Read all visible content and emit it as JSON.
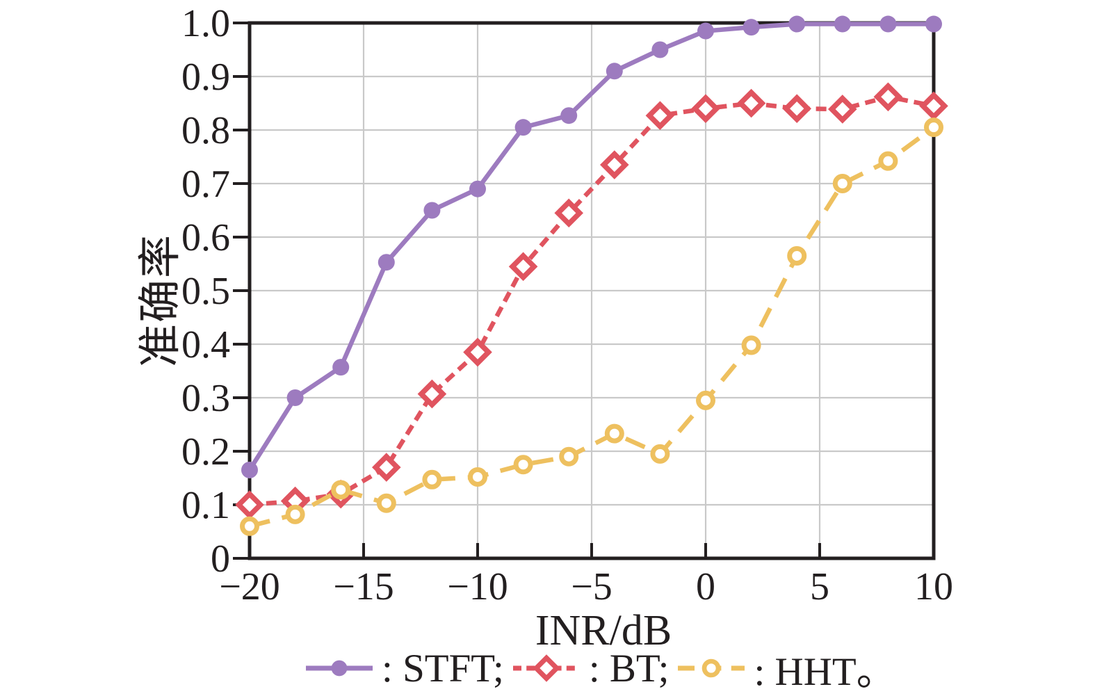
{
  "figure": {
    "background": "#ffffff",
    "axis_color": "#231f20",
    "grid_color": "#c9c9c9",
    "text_color": "#231f20"
  },
  "chart_data": {
    "type": "line",
    "title": "",
    "xlabel": "INR/dB",
    "ylabel": "准确率",
    "xlim": [
      -20,
      10
    ],
    "ylim": [
      0,
      1
    ],
    "grid": true,
    "legend_position": "bottom",
    "x": [
      -20,
      -18,
      -16,
      -14,
      -12,
      -10,
      -8,
      -6,
      -4,
      -2,
      0,
      2,
      4,
      6,
      8,
      10
    ],
    "xticks": [
      -20,
      -15,
      -10,
      -5,
      0,
      5,
      10
    ],
    "xtick_labels": [
      "−20",
      "−15",
      "−10",
      "−5",
      "0",
      "5",
      "10"
    ],
    "yticks": [
      0,
      0.1,
      0.2,
      0.3,
      0.4,
      0.5,
      0.6,
      0.7,
      0.8,
      0.9,
      1.0
    ],
    "ytick_labels": [
      "0",
      "0.1",
      "0.2",
      "0.3",
      "0.4",
      "0.5",
      "0.6",
      "0.7",
      "0.8",
      "0.9",
      "1.0"
    ],
    "series": [
      {
        "name": "STFT",
        "legend_label": ": STFT;",
        "color": "#9d7bbf",
        "marker": "circle-filled",
        "linestyle": "solid",
        "values": [
          0.165,
          0.3,
          0.357,
          0.553,
          0.65,
          0.69,
          0.805,
          0.827,
          0.91,
          0.95,
          0.985,
          0.992,
          0.998,
          0.998,
          0.998,
          0.998
        ]
      },
      {
        "name": "BT",
        "legend_label": ": BT;",
        "color": "#e0545f",
        "marker": "diamond-open",
        "linestyle": "dashed",
        "values": [
          0.1,
          0.107,
          0.12,
          0.17,
          0.307,
          0.385,
          0.545,
          0.645,
          0.735,
          0.827,
          0.84,
          0.85,
          0.84,
          0.839,
          0.862,
          0.845
        ]
      },
      {
        "name": "HHT",
        "legend_label": ": HHT。",
        "color": "#eec05f",
        "marker": "circle-open",
        "linestyle": "dashed-long",
        "values": [
          0.06,
          0.082,
          0.128,
          0.103,
          0.147,
          0.152,
          0.175,
          0.19,
          0.233,
          0.195,
          0.295,
          0.398,
          0.565,
          0.7,
          0.742,
          0.805
        ]
      }
    ]
  }
}
